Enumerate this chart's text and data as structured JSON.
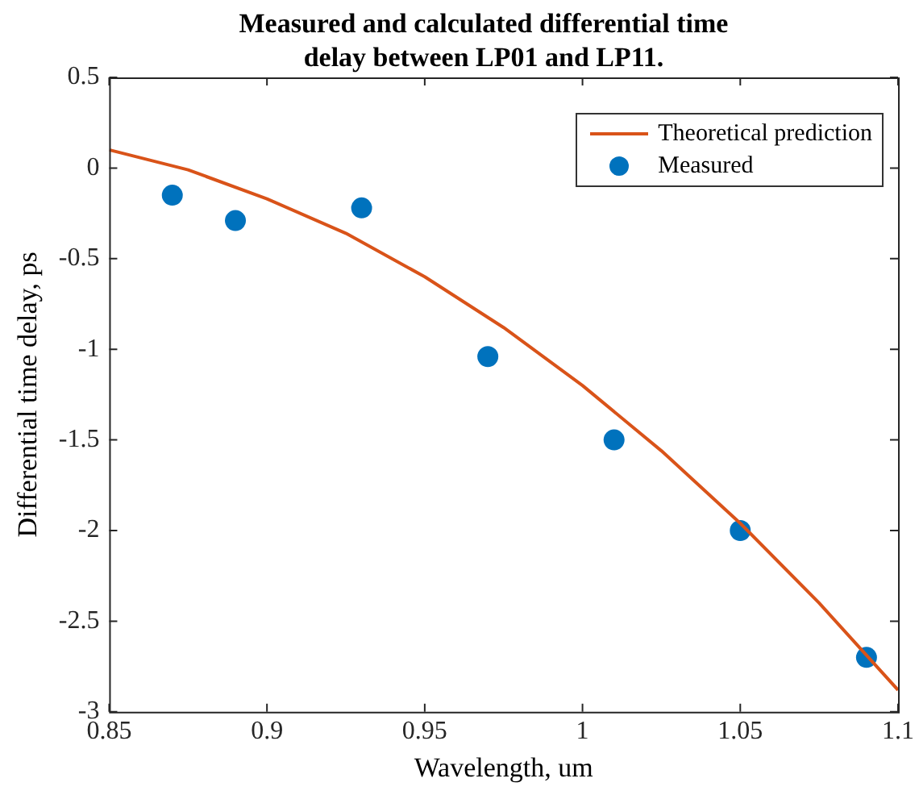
{
  "chart_data": {
    "type": "line",
    "title": "Measured and calculated differential time delay between LP01 and LP11.",
    "xlabel": "Wavelength, um",
    "ylabel": "Differential time delay, ps",
    "xlim": [
      0.85,
      1.1
    ],
    "xticks": [
      0.85,
      0.9,
      0.95,
      1,
      1.05,
      1.1
    ],
    "ylim": [
      -3,
      0.5
    ],
    "yticks": [
      -3,
      -2.5,
      -2,
      -1.5,
      -1,
      -0.5,
      0,
      0.5
    ],
    "grid": false,
    "legend": "top right",
    "series": [
      {
        "name": "Theoretical prediction",
        "type": "line",
        "color": "#d95319",
        "marker": "none",
        "line_style": "solid",
        "x": [
          0.85,
          0.875,
          0.9,
          0.925,
          0.95,
          0.975,
          1,
          1.025,
          1.05,
          1.075,
          1.1
        ],
        "values": [
          0.1,
          -0.01,
          -0.17,
          -0.36,
          -0.6,
          -0.88,
          -1.2,
          -1.56,
          -1.96,
          -2.4,
          -2.88
        ]
      },
      {
        "name": "Measured",
        "type": "scatter",
        "color": "#0072bd",
        "marker": "circle",
        "x": [
          0.87,
          0.89,
          0.93,
          0.97,
          1.01,
          1.05,
          1.09
        ],
        "values": [
          -0.15,
          -0.29,
          -0.22,
          -1.04,
          -1.5,
          -2.0,
          -2.7
        ]
      }
    ]
  }
}
